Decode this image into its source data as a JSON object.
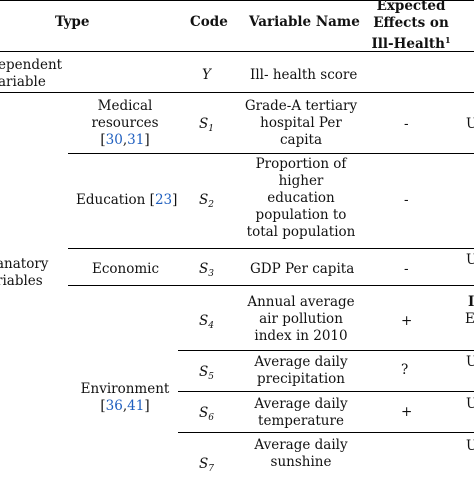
{
  "header": {
    "type": "Type",
    "code": "Code",
    "variable_name": "Variable Name",
    "effects_line1": "Expected",
    "effects_line2": "Effects on",
    "effects_line3": "Ill-Health",
    "effects_sup": "1"
  },
  "groups": {
    "dependent_line1": "ependent",
    "dependent_line2": "ariable",
    "explanatory_line1": "anatory",
    "explanatory_line2": "riables"
  },
  "rows": [
    {
      "type": "",
      "code": "Y",
      "sub": "",
      "name": [
        "Ill- health score"
      ],
      "effect": "",
      "extra": ""
    },
    {
      "type_lines": [
        "Medical",
        "resources"
      ],
      "ref_a": "30",
      "ref_b": "31",
      "code": "S",
      "sub": "1",
      "name": [
        "Grade-A tertiary",
        "hospital Per",
        "capita"
      ],
      "effect": "-",
      "extra": "U"
    },
    {
      "type_lines": [
        "Education"
      ],
      "ref_a": "23",
      "code": "S",
      "sub": "2",
      "name": [
        "Proportion of",
        "higher",
        "education",
        "population to",
        "total population"
      ],
      "effect": "-",
      "extra": ""
    },
    {
      "type_lines": [
        "Economic"
      ],
      "code": "S",
      "sub": "3",
      "name": [
        "GDP Per capita"
      ],
      "effect": "-",
      "extra": "U"
    },
    {
      "code": "S",
      "sub": "4",
      "name": [
        "Annual average",
        "air pollution",
        "index in 2010"
      ],
      "effect": "+",
      "extra": "I",
      "extra2": "E"
    },
    {
      "code": "S",
      "sub": "5",
      "name": [
        "Average daily",
        "precipitation"
      ],
      "effect": "?",
      "extra": "U"
    },
    {
      "code": "S",
      "sub": "6",
      "name": [
        "Average daily",
        "temperature"
      ],
      "effect": "+",
      "extra": "U"
    },
    {
      "code": "S",
      "sub": "7",
      "name": [
        "Average daily",
        "sunshine"
      ],
      "effect": "",
      "extra": "U"
    }
  ],
  "environment": {
    "label": "Environment",
    "ref_a": "36",
    "ref_b": "41"
  },
  "punct": {
    "open": "[",
    "comma": ",",
    "close": "]"
  }
}
